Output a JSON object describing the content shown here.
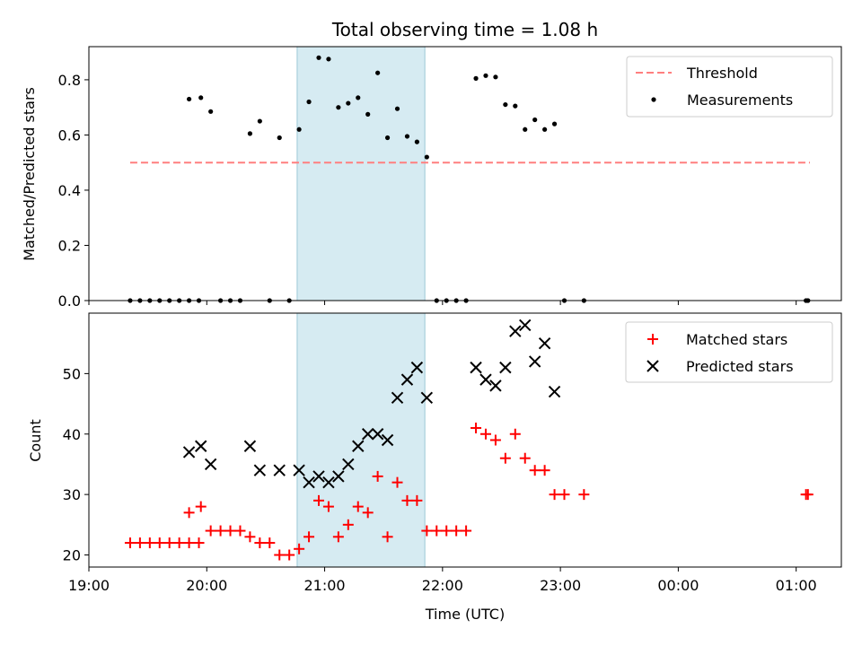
{
  "chart_data": [
    {
      "type": "scatter",
      "title": "Total observing time = 1.08 h",
      "xlabel": "",
      "ylabel": "Matched/Predicted stars",
      "xlim": [
        "19:00",
        "01:23"
      ],
      "ylim": [
        0,
        0.92
      ],
      "x_ticks": [
        "19:00",
        "20:00",
        "21:00",
        "22:00",
        "23:00",
        "00:00",
        "01:00"
      ],
      "y_ticks": [
        "0.0",
        "0.2",
        "0.4",
        "0.6",
        "0.8"
      ],
      "shaded_interval": [
        "20:46",
        "21:51"
      ],
      "shaded_color": "#add8e6",
      "legend_position": "top-right",
      "legend": [
        "Threshold",
        "Measurements"
      ],
      "threshold": {
        "name": "Threshold",
        "value": 0.5,
        "x": [
          "19:21",
          "01:07"
        ],
        "color": "#ff7f7f",
        "style": "dashed"
      },
      "series": [
        {
          "name": "Measurements",
          "color": "#000000",
          "marker": "dot",
          "x": [
            "19:21",
            "19:26",
            "19:31",
            "19:36",
            "19:41",
            "19:46",
            "19:51",
            "19:56",
            "19:51",
            "19:57",
            "20:02",
            "20:07",
            "20:12",
            "20:17",
            "20:22",
            "20:27",
            "20:32",
            "20:37",
            "20:42",
            "20:47",
            "20:52",
            "20:57",
            "21:02",
            "21:07",
            "21:12",
            "21:17",
            "21:22",
            "21:27",
            "21:32",
            "21:37",
            "21:42",
            "21:47",
            "21:52",
            "21:57",
            "22:02",
            "22:07",
            "22:12",
            "22:17",
            "22:22",
            "22:27",
            "22:32",
            "22:37",
            "22:42",
            "22:47",
            "22:52",
            "22:57",
            "23:02",
            "23:12",
            "01:05",
            "01:06"
          ],
          "y": [
            0.0,
            0.0,
            0.0,
            0.0,
            0.0,
            0.0,
            0.0,
            0.0,
            0.73,
            0.735,
            0.685,
            0.0,
            0.0,
            0.0,
            0.605,
            0.65,
            0.0,
            0.59,
            0.0,
            0.62,
            0.72,
            0.88,
            0.875,
            0.7,
            0.715,
            0.735,
            0.675,
            0.825,
            0.59,
            0.695,
            0.595,
            0.575,
            0.52,
            0.0,
            0.0,
            0.0,
            0.0,
            0.805,
            0.815,
            0.81,
            0.71,
            0.705,
            0.62,
            0.655,
            0.62,
            0.64,
            0.0,
            0.0,
            0.0,
            0.0
          ]
        }
      ]
    },
    {
      "type": "scatter",
      "title": "",
      "xlabel": "Time (UTC)",
      "ylabel": "Count",
      "xlim": [
        "19:00",
        "01:23"
      ],
      "ylim": [
        18,
        60
      ],
      "x_ticks": [
        "19:00",
        "20:00",
        "21:00",
        "22:00",
        "23:00",
        "00:00",
        "01:00"
      ],
      "y_ticks": [
        "20",
        "30",
        "40",
        "50"
      ],
      "shaded_interval": [
        "20:46",
        "21:51"
      ],
      "shaded_color": "#add8e6",
      "legend_position": "top-right",
      "legend": [
        "Matched stars",
        "Predicted stars"
      ],
      "series": [
        {
          "name": "Matched stars",
          "color": "#ff0000",
          "marker": "plus",
          "x": [
            "19:21",
            "19:26",
            "19:31",
            "19:36",
            "19:41",
            "19:46",
            "19:51",
            "19:56",
            "19:51",
            "19:57",
            "20:02",
            "20:07",
            "20:12",
            "20:17",
            "20:22",
            "20:27",
            "20:32",
            "20:37",
            "20:42",
            "20:47",
            "20:52",
            "20:57",
            "21:02",
            "21:07",
            "21:12",
            "21:17",
            "21:22",
            "21:27",
            "21:32",
            "21:37",
            "21:42",
            "21:47",
            "21:52",
            "21:57",
            "22:02",
            "22:07",
            "22:12",
            "22:17",
            "22:22",
            "22:27",
            "22:32",
            "22:37",
            "22:42",
            "22:47",
            "22:52",
            "22:57",
            "23:02",
            "23:12",
            "01:05",
            "01:06"
          ],
          "y": [
            22,
            22,
            22,
            22,
            22,
            22,
            22,
            22,
            27,
            28,
            24,
            24,
            24,
            24,
            23,
            22,
            22,
            20,
            20,
            21,
            23,
            29,
            28,
            23,
            25,
            28,
            27,
            33,
            23,
            32,
            29,
            29,
            24,
            24,
            24,
            24,
            24,
            41,
            40,
            39,
            36,
            40,
            36,
            34,
            34,
            30,
            30,
            30,
            30,
            30
          ]
        },
        {
          "name": "Predicted stars",
          "color": "#000000",
          "marker": "x",
          "x": [
            "19:51",
            "19:57",
            "20:02",
            "20:22",
            "20:27",
            "20:37",
            "20:47",
            "20:52",
            "20:57",
            "21:02",
            "21:07",
            "21:12",
            "21:17",
            "21:22",
            "21:27",
            "21:32",
            "21:37",
            "21:42",
            "21:47",
            "21:52",
            "22:17",
            "22:22",
            "22:27",
            "22:32",
            "22:37",
            "22:42",
            "22:47",
            "22:52",
            "22:57"
          ],
          "y": [
            37,
            38,
            35,
            38,
            34,
            34,
            34,
            32,
            33,
            32,
            33,
            35,
            38,
            40,
            40,
            39,
            46,
            49,
            51,
            46,
            51,
            49,
            48,
            51,
            57,
            58,
            52,
            55,
            47
          ]
        }
      ]
    }
  ]
}
